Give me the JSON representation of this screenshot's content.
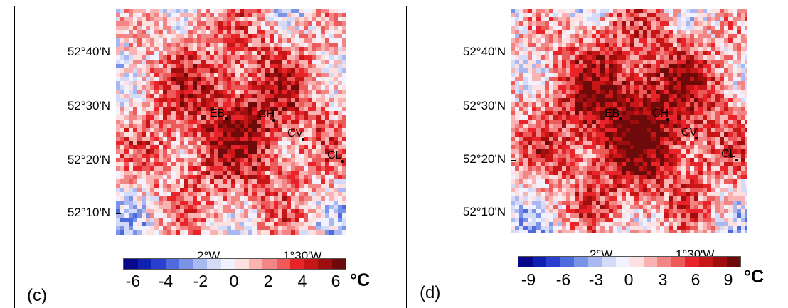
{
  "panels": [
    {
      "label": "(c)",
      "lat_labels": [
        "52°40'N",
        "52°30'N",
        "52°20'N",
        "52°10'N"
      ],
      "lon_labels": [
        "2°W",
        "1°30'W"
      ],
      "colorbar_ticks": [
        "-6",
        "-4",
        "-2",
        "0",
        "2",
        "4",
        "6"
      ],
      "unit": "°C",
      "sites": [
        "EB",
        "CH",
        "CV",
        "CL"
      ]
    },
    {
      "label": "(d)",
      "lat_labels": [
        "52°40'N",
        "52°30'N",
        "52°20'N",
        "52°10'N"
      ],
      "lon_labels": [
        "2°W",
        "1°30'W"
      ],
      "colorbar_ticks": [
        "-9",
        "-6",
        "-3",
        "0",
        "3",
        "6",
        "9"
      ],
      "unit": "°C",
      "sites": [
        "EB",
        "CH",
        "CV",
        "CL"
      ]
    }
  ],
  "colors": {
    "cold_dark": "#08088a",
    "cold_mid": "#4d6bdc",
    "neutral": "#f2f2ff",
    "warm_mid": "#e8242a",
    "warm_dark": "#6e0a0a"
  }
}
